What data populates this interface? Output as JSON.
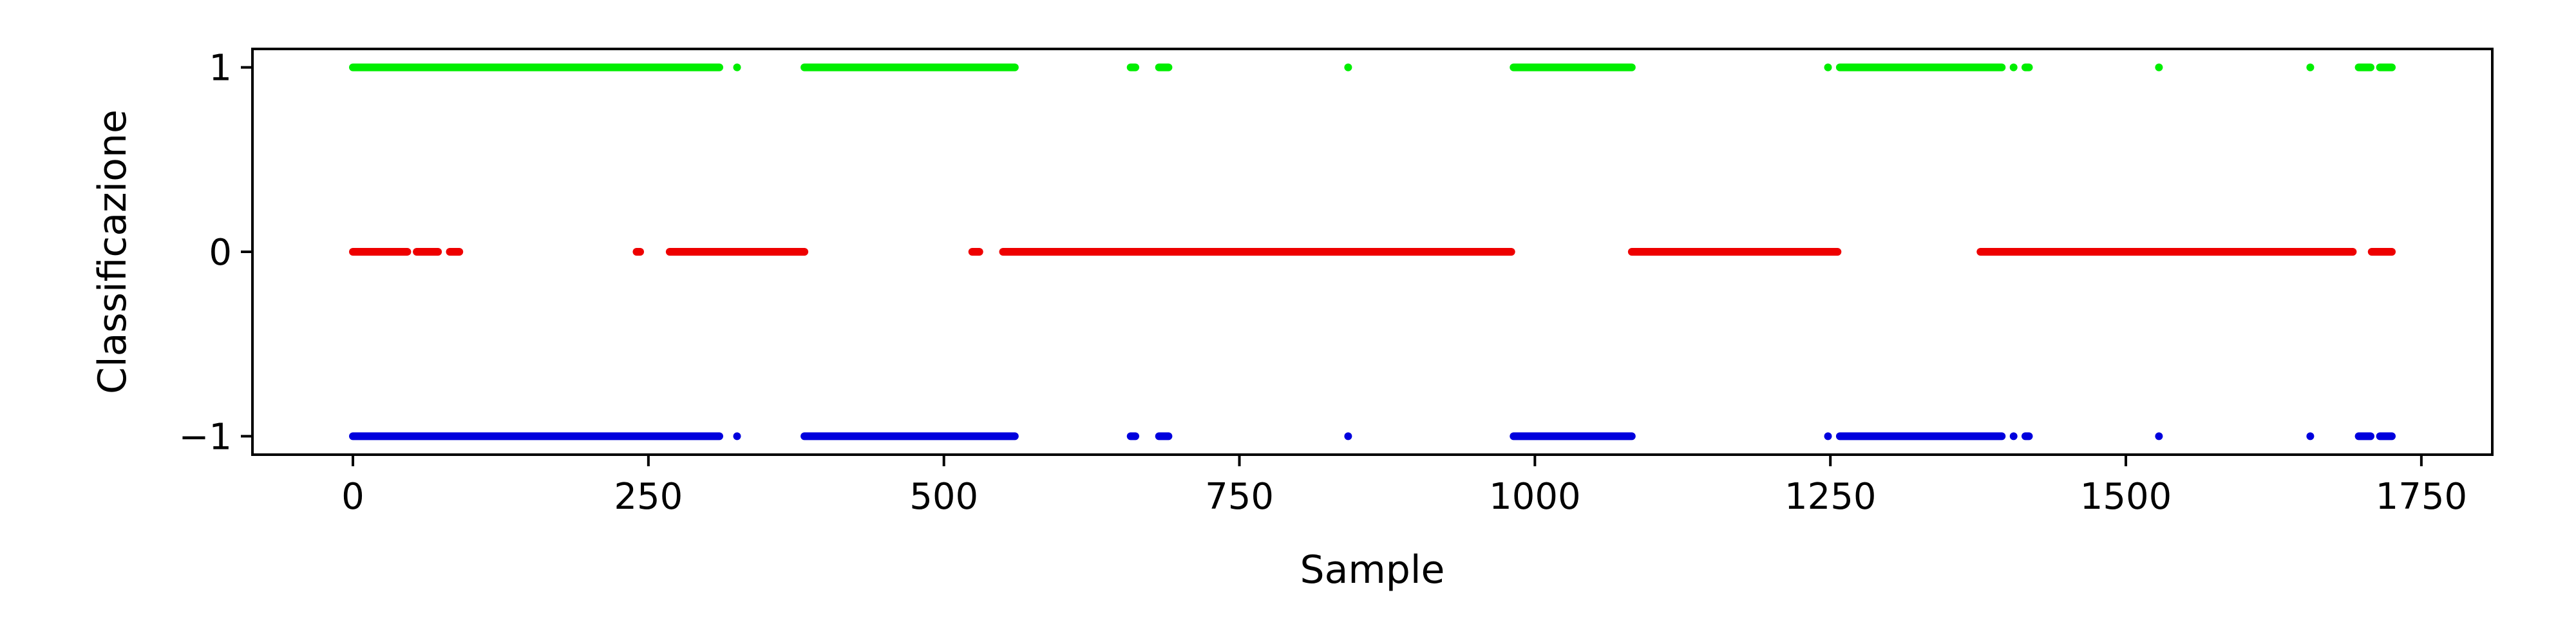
{
  "chart_data": {
    "type": "scatter",
    "title": "",
    "xlabel": "Sample",
    "ylabel": "Classificazione",
    "xlim": [
      -85,
      1810
    ],
    "ylim": [
      -1.1,
      1.1
    ],
    "xticks": [
      0,
      250,
      500,
      750,
      1000,
      1250,
      1500,
      1750
    ],
    "xtick_labels": [
      "0",
      "250",
      "500",
      "750",
      "1000",
      "1250",
      "1500",
      "1750"
    ],
    "yticks": [
      -1,
      0,
      1
    ],
    "ytick_labels": [
      "−1",
      "0",
      "1"
    ],
    "grid": false,
    "legend": "none",
    "series": [
      {
        "color": "#00ee00",
        "y": 1,
        "segments": [
          [
            0,
            310
          ],
          [
            325,
            325
          ],
          [
            382,
            560
          ],
          [
            658,
            662
          ],
          [
            682,
            690
          ],
          [
            842,
            842
          ],
          [
            982,
            1082
          ],
          [
            1248,
            1248
          ],
          [
            1258,
            1395
          ],
          [
            1405,
            1405
          ],
          [
            1415,
            1418
          ],
          [
            1528,
            1528
          ],
          [
            1656,
            1656
          ],
          [
            1697,
            1707
          ],
          [
            1715,
            1725
          ]
        ]
      },
      {
        "color": "#ee0000",
        "y": 0,
        "segments": [
          [
            0,
            46
          ],
          [
            54,
            72
          ],
          [
            82,
            90
          ],
          [
            240,
            243
          ],
          [
            268,
            382
          ],
          [
            524,
            530
          ],
          [
            550,
            980
          ],
          [
            1082,
            1256
          ],
          [
            1377,
            1692
          ],
          [
            1708,
            1725
          ]
        ]
      },
      {
        "color": "#0000dd",
        "y": -1,
        "segments": [
          [
            0,
            310
          ],
          [
            325,
            325
          ],
          [
            382,
            560
          ],
          [
            658,
            662
          ],
          [
            682,
            690
          ],
          [
            842,
            842
          ],
          [
            982,
            1082
          ],
          [
            1248,
            1248
          ],
          [
            1258,
            1395
          ],
          [
            1405,
            1405
          ],
          [
            1415,
            1418
          ],
          [
            1528,
            1528
          ],
          [
            1656,
            1656
          ],
          [
            1697,
            1707
          ],
          [
            1715,
            1725
          ]
        ]
      }
    ]
  }
}
